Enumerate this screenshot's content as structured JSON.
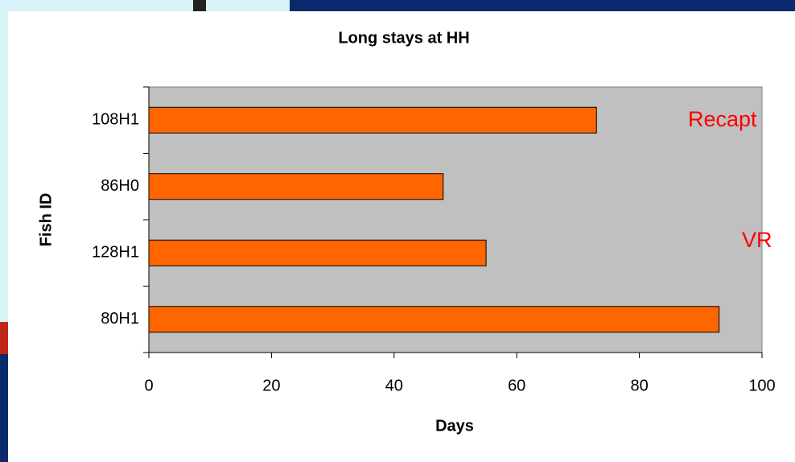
{
  "chart_data": {
    "type": "bar",
    "orientation": "horizontal",
    "title": "Long stays at HH",
    "x_label": "Days",
    "y_label": "Fish ID",
    "categories": [
      "108H1",
      "86H0",
      "128H1",
      "80H1"
    ],
    "values": [
      73,
      48,
      55,
      93
    ],
    "color": "#ff6600",
    "plot_background": "#c0c0c0",
    "xlim": [
      0,
      100
    ],
    "xticks": [
      0,
      20,
      40,
      60,
      80,
      100
    ],
    "grid": false,
    "annotations": [
      "Recapt",
      "VR"
    ]
  }
}
